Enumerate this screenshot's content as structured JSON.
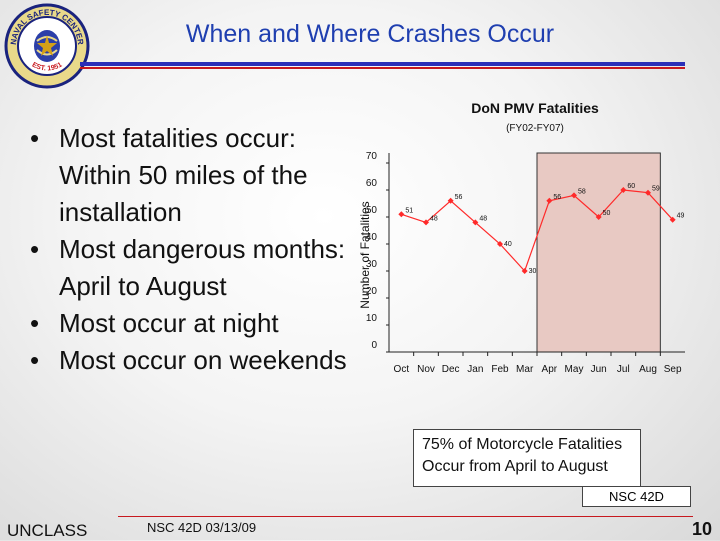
{
  "header": {
    "title": "When and Where Crashes Occur",
    "logo": {
      "top_text": "NAVAL SAFETY CENTER",
      "bottom_text": "EST. 1951",
      "colors": {
        "ring": "#1a237e",
        "star": "#d4a017",
        "inner": "#2c3fa8"
      }
    }
  },
  "bullets": [
    "Most fatalities occur: Within 50 miles of the installation",
    "Most dangerous months: April to August",
    "Most occur at night",
    "Most occur on weekends"
  ],
  "chart_data": {
    "type": "line",
    "title": "DoN PMV Fatalities",
    "subtitle": "(FY02-FY07)",
    "xlabel": "",
    "ylabel": "Number of Fatalities",
    "categories": [
      "Oct",
      "Nov",
      "Dec",
      "Jan",
      "Feb",
      "Mar",
      "Apr",
      "May",
      "Jun",
      "Jul",
      "Aug",
      "Sep"
    ],
    "series": [
      {
        "values": [
          51,
          48,
          56,
          48,
          40,
          30,
          56,
          58,
          50,
          60,
          59,
          49
        ]
      }
    ],
    "ylim": [
      0,
      70
    ],
    "yticks": [
      0,
      10,
      20,
      30,
      40,
      50,
      60,
      70
    ],
    "highlight": {
      "from": "Apr",
      "to": "Aug"
    },
    "colors": {
      "line": "#ff2a2a",
      "highlight": "#e8c9c3"
    },
    "grid": false
  },
  "callout": {
    "line1": "75% of Motorcycle Fatalities",
    "line2": "Occur from April to August"
  },
  "footer": {
    "nsc_box": "NSC 42D",
    "classification": "UNCLASS",
    "doc_id": "NSC 42D 03/13/09",
    "page_number": "10"
  }
}
